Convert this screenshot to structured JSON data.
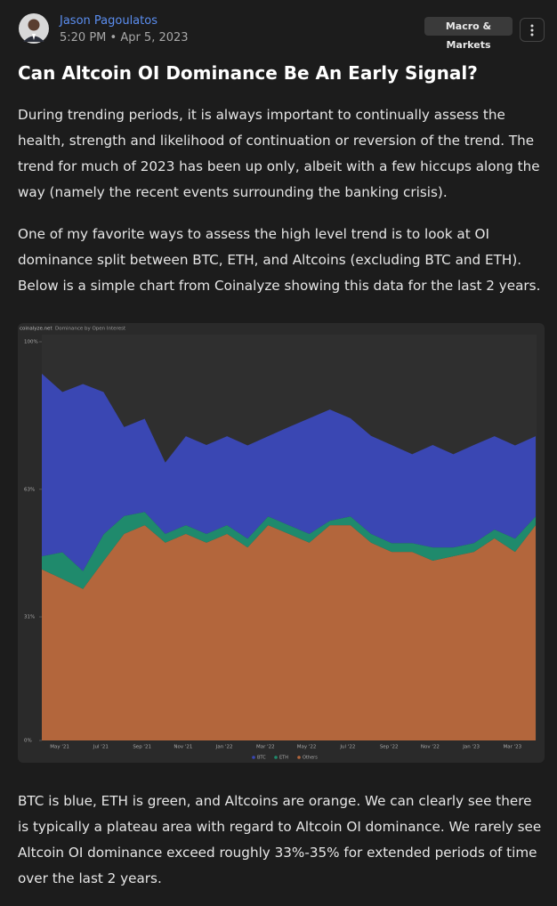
{
  "post": {
    "author": "Jason Pagoulatos",
    "timestamp": "5:20 PM • Apr 5, 2023",
    "tag": "Macro & Markets",
    "title": "Can Altcoin OI Dominance Be An Early Signal?",
    "paragraphs": [
      "During trending periods, it is always important to continually assess the health, strength and likelihood of continuation or reversion of the trend. The trend for much of 2023 has been up only, albeit with a few hiccups along the way (namely the recent events surrounding the banking crisis).",
      "One of my favorite ways to assess the high level trend is to look at OI dominance split between BTC, ETH, and Altcoins (excluding BTC and ETH). Below is a simple chart from Coinalyze showing this data for the last 2 years.",
      "BTC is blue, ETH is green, and Altcoins are orange. We can clearly see there is typically a plateau area with regard to Altcoin OI dominance. We rarely see Altcoin OI dominance exceed roughly 33%-35% for extended periods of time over the last 2 years."
    ]
  },
  "chart_data": {
    "type": "area",
    "stacked": true,
    "source": "coinalyze.net",
    "title": "Dominance by Open Interest",
    "categories": [
      null,
      "May '21",
      null,
      "Jul '21",
      null,
      "Sep '21",
      null,
      "Nov '21",
      null,
      "Jan '22",
      null,
      "Mar '22",
      null,
      "May '22",
      null,
      "Jul '22",
      null,
      "Sep '22",
      null,
      "Nov '22",
      null,
      "Jan '23",
      null,
      "Mar '23",
      null
    ],
    "series": [
      {
        "name": "BTC",
        "color": "#3a47b3",
        "values": [
          45.8,
          40.2,
          46.9,
          35.7,
          22.3,
          23.4,
          17.9,
          22.3,
          22.3,
          22.3,
          23.4,
          20.1,
          24.6,
          29,
          27.9,
          24.6,
          24.6,
          24.6,
          22.3,
          25.7,
          23.4,
          24.6,
          23.4,
          23.4,
          20.1
        ]
      },
      {
        "name": "ETH",
        "color": "#1f8a6c",
        "values": [
          3.3,
          6.7,
          4.5,
          6.7,
          4.5,
          3.3,
          2.2,
          2.2,
          2.2,
          2.2,
          2.2,
          2.2,
          2.2,
          2.2,
          1.1,
          2.2,
          2.2,
          2.2,
          2.2,
          3.3,
          2.2,
          2.2,
          2.2,
          3.3,
          2.2
        ]
      },
      {
        "name": "Others",
        "color": "#b3663c",
        "values": [
          42.9,
          40.5,
          38,
          45,
          51.8,
          54,
          49.6,
          51.8,
          49.6,
          51.8,
          48.4,
          54,
          51.8,
          49.6,
          54,
          54,
          49.6,
          47.3,
          47.3,
          45.1,
          46.2,
          47.3,
          50.7,
          47.3,
          54
        ]
      }
    ],
    "ylim": [
      0,
      100
    ],
    "yticks": [
      {
        "value": 0,
        "label": "0%"
      },
      {
        "value": 31,
        "label": "31%"
      },
      {
        "value": 63,
        "label": "63%"
      },
      {
        "value": 100,
        "label": "100%"
      }
    ],
    "grid": false,
    "legend": "bottom"
  }
}
